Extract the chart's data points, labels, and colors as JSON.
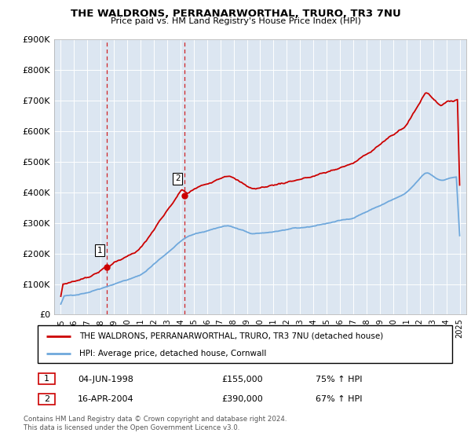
{
  "title": "THE WALDRONS, PERRANARWORTHAL, TRURO, TR3 7NU",
  "subtitle": "Price paid vs. HM Land Registry's House Price Index (HPI)",
  "legend_line1": "THE WALDRONS, PERRANARWORTHAL, TRURO, TR3 7NU (detached house)",
  "legend_line2": "HPI: Average price, detached house, Cornwall",
  "table_rows": [
    {
      "num": "1",
      "date": "04-JUN-1998",
      "price": "£155,000",
      "change": "75% ↑ HPI"
    },
    {
      "num": "2",
      "date": "16-APR-2004",
      "price": "£390,000",
      "change": "67% ↑ HPI"
    }
  ],
  "footer": "Contains HM Land Registry data © Crown copyright and database right 2024.\nThis data is licensed under the Open Government Licence v3.0.",
  "hpi_color": "#6fa8dc",
  "price_color": "#cc0000",
  "vline_color": "#cc0000",
  "background_color": "#dce6f1",
  "ylim": [
    0,
    900000
  ],
  "ytick_vals": [
    0,
    100000,
    200000,
    300000,
    400000,
    500000,
    600000,
    700000,
    800000,
    900000
  ],
  "ytick_labels": [
    "£0",
    "£100K",
    "£200K",
    "£300K",
    "£400K",
    "£500K",
    "£600K",
    "£700K",
    "£800K",
    "£900K"
  ],
  "sale1_year": 1998.44,
  "sale1_price": 155000,
  "sale2_year": 2004.29,
  "sale2_price": 390000,
  "xlim_min": 1994.5,
  "xlim_max": 2025.5,
  "xtick_start": 1995,
  "xtick_end": 2025
}
